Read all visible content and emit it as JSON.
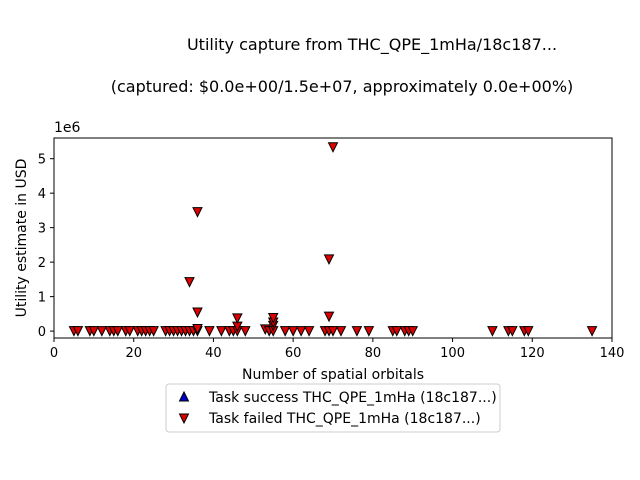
{
  "chart_data": {
    "type": "scatter",
    "title_line1": "Utility capture from THC_QPE_1mHa/18c187...",
    "title_line2": "(captured: $0.0e+00/1.5e+07, approximately 0.0e+00%)",
    "xlabel": "Number of spatial orbitals",
    "ylabel": "Utility estimate in USD",
    "y_offset_label": "1e6",
    "xlim": [
      0,
      140
    ],
    "ylim": [
      -200000,
      5600000
    ],
    "x_ticks": [
      0,
      20,
      40,
      60,
      80,
      100,
      120,
      140
    ],
    "y_ticks": [
      0,
      1000000,
      2000000,
      3000000,
      4000000,
      5000000
    ],
    "y_tick_labels": [
      "0",
      "1",
      "2",
      "3",
      "4",
      "5"
    ],
    "grid": false,
    "legend_position": "below-center",
    "series": [
      {
        "name": "Task success THC_QPE_1mHa (18c187...)",
        "marker": "triangle-up",
        "color": "#0000cc",
        "points": []
      },
      {
        "name": "Task failed THC_QPE_1mHa (18c187...)",
        "marker": "triangle-down",
        "color": "#dd0000",
        "points": [
          [
            5,
            0
          ],
          [
            6,
            0
          ],
          [
            9,
            0
          ],
          [
            10,
            0
          ],
          [
            12,
            0
          ],
          [
            14,
            0
          ],
          [
            15,
            0
          ],
          [
            16,
            0
          ],
          [
            18,
            0
          ],
          [
            19,
            0
          ],
          [
            21,
            0
          ],
          [
            22,
            0
          ],
          [
            23,
            0
          ],
          [
            24,
            0
          ],
          [
            25,
            0
          ],
          [
            28,
            0
          ],
          [
            29,
            0
          ],
          [
            30,
            0
          ],
          [
            31,
            0
          ],
          [
            32,
            0
          ],
          [
            33,
            0
          ],
          [
            34,
            0
          ],
          [
            35,
            0
          ],
          [
            36,
            0
          ],
          [
            36,
            60000
          ],
          [
            39,
            0
          ],
          [
            42,
            0
          ],
          [
            44,
            0
          ],
          [
            45,
            0
          ],
          [
            46,
            0
          ],
          [
            46,
            130000
          ],
          [
            48,
            0
          ],
          [
            53,
            50000
          ],
          [
            54,
            0
          ],
          [
            55,
            0
          ],
          [
            55,
            150000
          ],
          [
            55,
            250000
          ],
          [
            55,
            380000
          ],
          [
            58,
            0
          ],
          [
            60,
            0
          ],
          [
            62,
            0
          ],
          [
            64,
            0
          ],
          [
            68,
            0
          ],
          [
            69,
            0
          ],
          [
            69,
            420000
          ],
          [
            70,
            0
          ],
          [
            72,
            0
          ],
          [
            76,
            0
          ],
          [
            79,
            0
          ],
          [
            85,
            0
          ],
          [
            86,
            0
          ],
          [
            88,
            0
          ],
          [
            89,
            0
          ],
          [
            90,
            0
          ],
          [
            110,
            0
          ],
          [
            114,
            0
          ],
          [
            115,
            0
          ],
          [
            118,
            0
          ],
          [
            119,
            0
          ],
          [
            135,
            0
          ],
          [
            34,
            1420000
          ],
          [
            36,
            540000
          ],
          [
            36,
            3450000
          ],
          [
            46,
            370000
          ],
          [
            69,
            2080000
          ],
          [
            70,
            5330000
          ]
        ]
      }
    ]
  }
}
